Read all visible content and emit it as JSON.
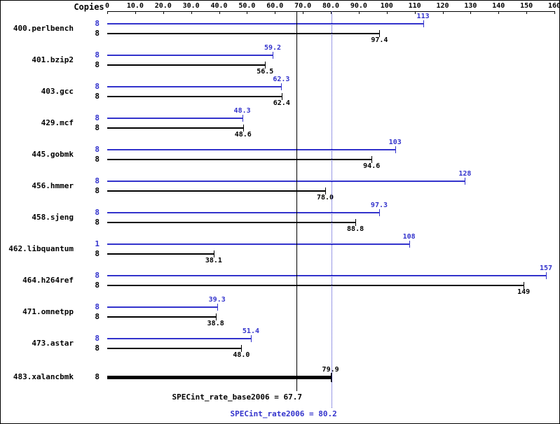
{
  "chart_data": {
    "type": "bar",
    "orientation": "horizontal",
    "title": "",
    "copies_header": "Copies",
    "xlabel": "",
    "ylabel": "",
    "xlim": [
      0,
      160
    ],
    "grid": false,
    "legend_position": "none",
    "series_colors": {
      "peak": "#3333cc",
      "base": "#000000"
    },
    "xticks": [
      {
        "value": 0,
        "label": "0"
      },
      {
        "value": 10,
        "label": "10.0"
      },
      {
        "value": 20,
        "label": "20.0"
      },
      {
        "value": 30,
        "label": "30.0"
      },
      {
        "value": 40,
        "label": "40.0"
      },
      {
        "value": 50,
        "label": "50.0"
      },
      {
        "value": 60,
        "label": "60.0"
      },
      {
        "value": 70,
        "label": "70.0"
      },
      {
        "value": 80,
        "label": "80.0"
      },
      {
        "value": 90,
        "label": "90.0"
      },
      {
        "value": 100,
        "label": "100"
      },
      {
        "value": 110,
        "label": "110"
      },
      {
        "value": 120,
        "label": "120"
      },
      {
        "value": 130,
        "label": "130"
      },
      {
        "value": 140,
        "label": "140"
      },
      {
        "value": 150,
        "label": "150"
      },
      {
        "value": 160,
        "label": "160"
      }
    ],
    "benchmarks": [
      {
        "name": "400.perlbench",
        "peak": {
          "copies": "8",
          "value": 113,
          "label": "113"
        },
        "base": {
          "copies": "8",
          "value": 97.4,
          "label": "97.4"
        }
      },
      {
        "name": "401.bzip2",
        "peak": {
          "copies": "8",
          "value": 59.2,
          "label": "59.2"
        },
        "base": {
          "copies": "8",
          "value": 56.5,
          "label": "56.5"
        }
      },
      {
        "name": "403.gcc",
        "peak": {
          "copies": "8",
          "value": 62.3,
          "label": "62.3"
        },
        "base": {
          "copies": "8",
          "value": 62.4,
          "label": "62.4"
        }
      },
      {
        "name": "429.mcf",
        "peak": {
          "copies": "8",
          "value": 48.3,
          "label": "48.3"
        },
        "base": {
          "copies": "8",
          "value": 48.6,
          "label": "48.6"
        }
      },
      {
        "name": "445.gobmk",
        "peak": {
          "copies": "8",
          "value": 103,
          "label": "103"
        },
        "base": {
          "copies": "8",
          "value": 94.6,
          "label": "94.6"
        }
      },
      {
        "name": "456.hmmer",
        "peak": {
          "copies": "8",
          "value": 128,
          "label": "128"
        },
        "base": {
          "copies": "8",
          "value": 78.0,
          "label": "78.0"
        }
      },
      {
        "name": "458.sjeng",
        "peak": {
          "copies": "8",
          "value": 97.3,
          "label": "97.3"
        },
        "base": {
          "copies": "8",
          "value": 88.8,
          "label": "88.8"
        }
      },
      {
        "name": "462.libquantum",
        "peak": {
          "copies": "1",
          "value": 108,
          "label": "108"
        },
        "base": {
          "copies": "8",
          "value": 38.1,
          "label": "38.1"
        }
      },
      {
        "name": "464.h264ref",
        "peak": {
          "copies": "8",
          "value": 157,
          "label": "157"
        },
        "base": {
          "copies": "8",
          "value": 149,
          "label": "149"
        }
      },
      {
        "name": "471.omnetpp",
        "peak": {
          "copies": "8",
          "value": 39.3,
          "label": "39.3"
        },
        "base": {
          "copies": "8",
          "value": 38.8,
          "label": "38.8"
        }
      },
      {
        "name": "473.astar",
        "peak": {
          "copies": "8",
          "value": 51.4,
          "label": "51.4"
        },
        "base": {
          "copies": "8",
          "value": 48.0,
          "label": "48.0"
        }
      },
      {
        "name": "483.xalancbmk",
        "peak": null,
        "base": {
          "copies": "8",
          "value": 79.9,
          "label": "79.9"
        }
      }
    ],
    "reference_lines": [
      {
        "name": "base-mean",
        "value": 67.7,
        "label": "SPECint_rate_base2006 = 67.7",
        "color": "#000000",
        "style": "solid"
      },
      {
        "name": "peak-mean",
        "value": 80.2,
        "label": "SPECint_rate2006 = 80.2",
        "color": "#3333cc",
        "style": "dotted"
      }
    ]
  }
}
